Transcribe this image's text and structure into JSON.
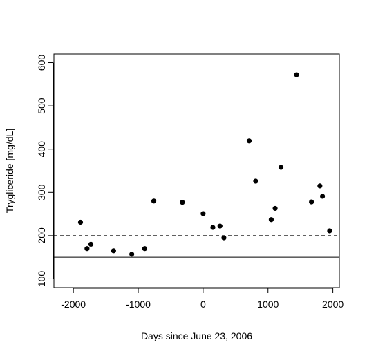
{
  "chart_data": {
    "type": "scatter",
    "title": "",
    "xlabel": "Days since June 23, 2006",
    "ylabel": "Trygliceride [mg/dL]",
    "xlim": [
      -2300,
      2100
    ],
    "ylim": [
      80,
      620
    ],
    "x_ticks": [
      -2000,
      -1000,
      0,
      1000,
      2000
    ],
    "x_tick_labels": [
      "-2000",
      "-1000",
      "0",
      "1000",
      "2000"
    ],
    "y_ticks": [
      100,
      200,
      300,
      400,
      500,
      600
    ],
    "y_tick_labels": [
      "100",
      "200",
      "300",
      "400",
      "500",
      "600"
    ],
    "grid": false,
    "legend": "none",
    "points": [
      {
        "x": -1890,
        "y": 231
      },
      {
        "x": -1790,
        "y": 170
      },
      {
        "x": -1730,
        "y": 180
      },
      {
        "x": -1380,
        "y": 165
      },
      {
        "x": -1100,
        "y": 157
      },
      {
        "x": -900,
        "y": 170
      },
      {
        "x": -760,
        "y": 280
      },
      {
        "x": -320,
        "y": 277
      },
      {
        "x": 0,
        "y": 251
      },
      {
        "x": 150,
        "y": 219
      },
      {
        "x": 260,
        "y": 222
      },
      {
        "x": 320,
        "y": 195
      },
      {
        "x": 710,
        "y": 419
      },
      {
        "x": 810,
        "y": 326
      },
      {
        "x": 1050,
        "y": 237
      },
      {
        "x": 1110,
        "y": 263
      },
      {
        "x": 1200,
        "y": 358
      },
      {
        "x": 1440,
        "y": 572
      },
      {
        "x": 1670,
        "y": 278
      },
      {
        "x": 1800,
        "y": 315
      },
      {
        "x": 1840,
        "y": 291
      },
      {
        "x": 1950,
        "y": 211
      }
    ],
    "reference_lines": [
      {
        "y": 200,
        "style": "dashed"
      },
      {
        "y": 150,
        "style": "solid"
      }
    ],
    "colors": {
      "points": "#000000",
      "axes": "#000000",
      "background": "#ffffff"
    }
  }
}
